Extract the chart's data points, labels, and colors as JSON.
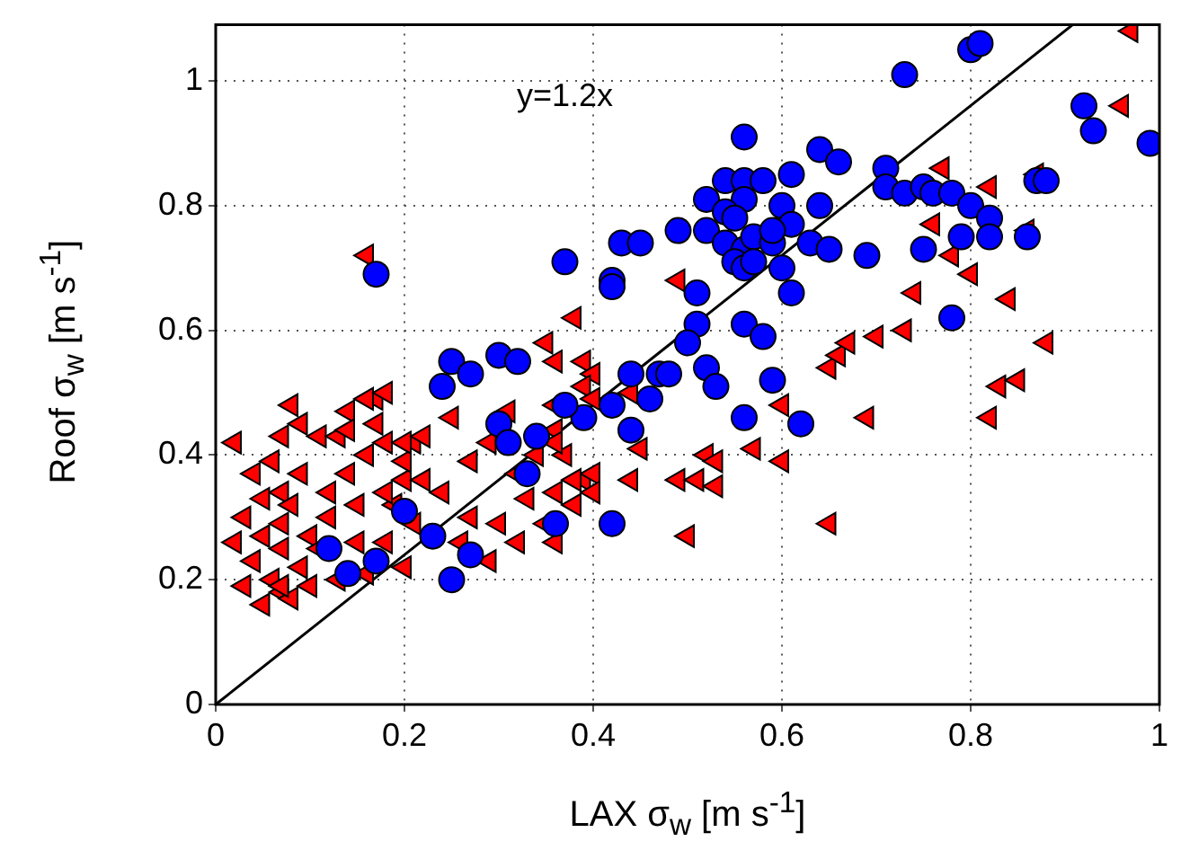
{
  "chart_data": {
    "type": "scatter",
    "xlabel": "LAX σ$_{w}$ [m s$^{-1}$]",
    "ylabel": "Roof σ$_{w}$ [m s$^{-1}$]",
    "xlim": [
      0,
      1
    ],
    "ylim": [
      0,
      1.09
    ],
    "xticks": [
      0,
      0.2,
      0.4,
      0.6,
      0.8,
      1
    ],
    "yticks": [
      0,
      0.2,
      0.4,
      0.6,
      0.8,
      1
    ],
    "grid": true,
    "annotations": [
      "y=1.2x"
    ],
    "series": [
      {
        "type": "scatter",
        "marker": "circle",
        "color": "#0000ff",
        "x": [
          0.17,
          0.12,
          0.14,
          0.17,
          0.23,
          0.27,
          0.25,
          0.25,
          0.24,
          0.27,
          0.3,
          0.32,
          0.3,
          0.31,
          0.33,
          0.34,
          0.2,
          0.56,
          0.64,
          0.66,
          0.54,
          0.56,
          0.58,
          0.61,
          0.52,
          0.56,
          0.54,
          0.55,
          0.6,
          0.64,
          0.61,
          0.49,
          0.52,
          0.54,
          0.56,
          0.57,
          0.59,
          0.59,
          0.63,
          0.65,
          0.69,
          0.43,
          0.45,
          0.37,
          0.42,
          0.42,
          0.55,
          0.56,
          0.57,
          0.6,
          0.61,
          0.51,
          0.51,
          0.56,
          0.58,
          0.5,
          0.52,
          0.53,
          0.47,
          0.48,
          0.44,
          0.46,
          0.42,
          0.39,
          0.37,
          0.59,
          0.56,
          0.62,
          0.44,
          0.42,
          0.36,
          0.8,
          0.81,
          0.73,
          0.92,
          0.93,
          0.99,
          0.71,
          0.71,
          0.73,
          0.75,
          0.76,
          0.78,
          0.8,
          0.82,
          0.79,
          0.82,
          0.86,
          0.87,
          0.88,
          0.75,
          0.78
        ],
        "values": [
          0.69,
          0.25,
          0.21,
          0.23,
          0.27,
          0.24,
          0.2,
          0.55,
          0.51,
          0.53,
          0.56,
          0.55,
          0.45,
          0.42,
          0.37,
          0.43,
          0.31,
          0.91,
          0.89,
          0.87,
          0.84,
          0.84,
          0.84,
          0.85,
          0.81,
          0.81,
          0.79,
          0.78,
          0.8,
          0.8,
          0.77,
          0.76,
          0.76,
          0.74,
          0.73,
          0.75,
          0.74,
          0.76,
          0.74,
          0.73,
          0.72,
          0.74,
          0.74,
          0.71,
          0.68,
          0.67,
          0.71,
          0.7,
          0.71,
          0.7,
          0.66,
          0.66,
          0.61,
          0.61,
          0.59,
          0.58,
          0.54,
          0.51,
          0.53,
          0.53,
          0.53,
          0.49,
          0.48,
          0.46,
          0.48,
          0.52,
          0.46,
          0.45,
          0.44,
          0.29,
          0.29,
          1.05,
          1.06,
          1.01,
          0.96,
          0.92,
          0.9,
          0.86,
          0.83,
          0.82,
          0.83,
          0.82,
          0.82,
          0.8,
          0.78,
          0.75,
          0.75,
          0.75,
          0.84,
          0.84,
          0.73,
          0.62
        ]
      },
      {
        "type": "scatter",
        "marker": "triangle",
        "color": "#ff0000",
        "x": [
          0.02,
          0.04,
          0.06,
          0.07,
          0.03,
          0.05,
          0.07,
          0.08,
          0.1,
          0.12,
          0.14,
          0.16,
          0.17,
          0.18,
          0.2,
          0.21,
          0.04,
          0.06,
          0.07,
          0.09,
          0.11,
          0.13,
          0.15,
          0.18,
          0.2,
          0.03,
          0.05,
          0.07,
          0.08,
          0.1,
          0.12,
          0.07,
          0.16,
          0.19,
          0.21,
          0.22,
          0.18,
          0.15,
          0.09,
          0.07,
          0.05,
          0.02,
          0.14,
          0.11,
          0.2,
          0.08,
          0.09,
          0.16,
          0.18,
          0.17,
          0.13,
          0.14,
          0.2,
          0.16,
          0.22,
          0.25,
          0.27,
          0.29,
          0.31,
          0.32,
          0.34,
          0.36,
          0.37,
          0.39,
          0.24,
          0.27,
          0.3,
          0.33,
          0.35,
          0.36,
          0.38,
          0.4,
          0.26,
          0.29,
          0.32,
          0.38,
          0.49,
          0.35,
          0.36,
          0.39,
          0.4,
          0.39,
          0.36,
          0.4,
          0.44,
          0.36,
          0.45,
          0.38,
          0.4,
          0.44,
          0.49,
          0.51,
          0.52,
          0.53,
          0.53,
          0.57,
          0.6,
          0.36,
          0.5,
          0.65,
          0.6,
          0.65,
          0.66,
          0.67,
          0.7,
          0.69,
          0.97,
          0.96,
          0.77,
          0.82,
          0.76,
          0.87,
          0.86,
          0.78,
          0.8,
          0.74,
          0.84,
          0.73,
          0.88,
          0.83,
          0.85,
          0.82
        ],
        "values": [
          0.42,
          0.37,
          0.39,
          0.34,
          0.3,
          0.27,
          0.29,
          0.32,
          0.27,
          0.34,
          0.37,
          0.4,
          0.49,
          0.42,
          0.36,
          0.29,
          0.23,
          0.2,
          0.18,
          0.22,
          0.25,
          0.2,
          0.26,
          0.26,
          0.22,
          0.19,
          0.16,
          0.25,
          0.17,
          0.19,
          0.3,
          0.19,
          0.21,
          0.32,
          0.42,
          0.36,
          0.34,
          0.32,
          0.37,
          0.43,
          0.33,
          0.26,
          0.47,
          0.43,
          0.39,
          0.48,
          0.45,
          0.49,
          0.5,
          0.45,
          0.43,
          0.44,
          0.42,
          0.72,
          0.43,
          0.46,
          0.39,
          0.42,
          0.47,
          0.37,
          0.4,
          0.44,
          0.4,
          0.36,
          0.34,
          0.3,
          0.29,
          0.33,
          0.29,
          0.34,
          0.32,
          0.37,
          0.26,
          0.23,
          0.26,
          0.62,
          0.68,
          0.58,
          0.55,
          0.55,
          0.53,
          0.51,
          0.48,
          0.49,
          0.5,
          0.42,
          0.41,
          0.36,
          0.34,
          0.36,
          0.36,
          0.36,
          0.4,
          0.39,
          0.35,
          0.41,
          0.39,
          0.26,
          0.27,
          0.29,
          0.48,
          0.54,
          0.56,
          0.58,
          0.59,
          0.46,
          1.08,
          0.96,
          0.86,
          0.83,
          0.77,
          0.85,
          0.76,
          0.72,
          0.69,
          0.66,
          0.65,
          0.6,
          0.58,
          0.51,
          0.52,
          0.46
        ]
      },
      {
        "type": "line",
        "marker": "none",
        "line_style": "solid",
        "color": "#000000",
        "x": [
          0,
          0.908
        ],
        "values": [
          0,
          1.09
        ]
      }
    ]
  }
}
